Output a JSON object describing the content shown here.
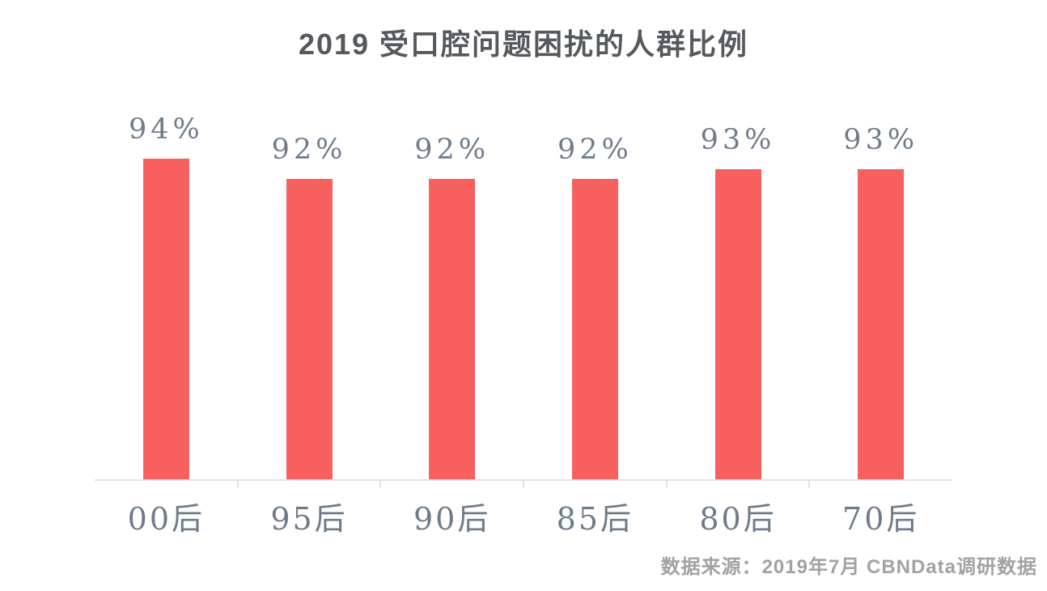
{
  "title": "2019 受口腔问题困扰的人群比例",
  "source_note": "数据来源：2019年7月 CBNData调研数据",
  "chart_data": {
    "type": "bar",
    "title": "2019 受口腔问题困扰的人群比例",
    "categories": [
      "00后",
      "95后",
      "90后",
      "85后",
      "80后",
      "70后"
    ],
    "values": [
      94,
      92,
      92,
      92,
      93,
      93
    ],
    "value_labels": [
      "94%",
      "92%",
      "92%",
      "92%",
      "93%",
      "93%"
    ],
    "unit": "%",
    "xlabel": "",
    "ylabel": "",
    "ylim": [
      62,
      100
    ],
    "grid": false,
    "legend": false,
    "bar_color": "#f85f5f",
    "label_color": "#6e7b89",
    "axis_color": "#e2e2e2",
    "source": "数据来源：2019年7月 CBNData调研数据"
  }
}
